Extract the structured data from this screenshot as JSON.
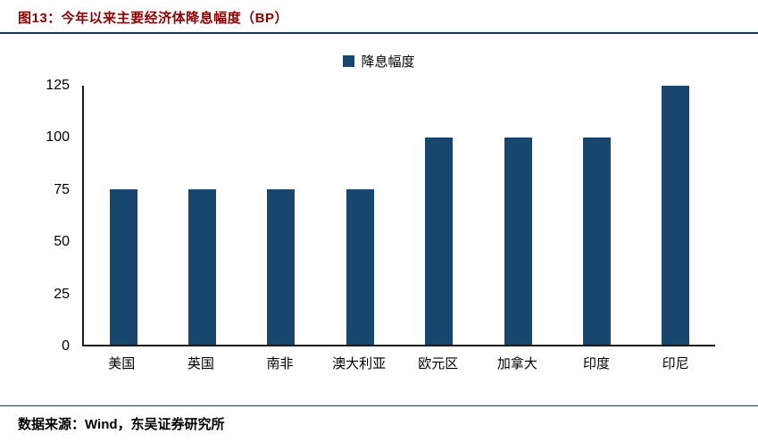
{
  "header": {
    "title": "图13：今年以来主要经济体降息幅度（BP）"
  },
  "legend": {
    "label": "降息幅度"
  },
  "footer": {
    "source": "数据来源：Wind，东吴证券研究所"
  },
  "colors": {
    "bar": "#17466f",
    "title": "#8b0000",
    "rule": "#17375e",
    "axis": "#1a1a1a"
  },
  "chart_data": {
    "type": "bar",
    "title": "今年以来主要经济体降息幅度（BP）",
    "series_name": "降息幅度",
    "categories": [
      "美国",
      "英国",
      "南非",
      "澳大利亚",
      "欧元区",
      "加拿大",
      "印度",
      "印尼"
    ],
    "values": [
      75,
      75,
      75,
      75,
      100,
      100,
      100,
      125
    ],
    "xlabel": "",
    "ylabel": "",
    "ylim": [
      0,
      125
    ],
    "yticks": [
      0,
      25,
      50,
      75,
      100,
      125
    ],
    "grid": false,
    "legend_position": "top"
  }
}
